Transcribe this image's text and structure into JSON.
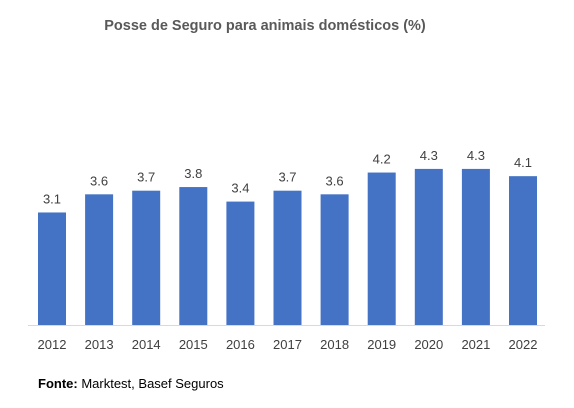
{
  "title": "Posse de Seguro para animais domésticos (%)",
  "source": {
    "label": "Fonte:",
    "text": " Marktest, Basef Seguros"
  },
  "colors": {
    "bar": "#4472C4",
    "label": "#404040",
    "axis": "#D9D9D9"
  },
  "chart_data": {
    "type": "bar",
    "title": "Posse de Seguro para animais domésticos (%)",
    "categories": [
      "2012",
      "2013",
      "2014",
      "2015",
      "2016",
      "2017",
      "2018",
      "2019",
      "2020",
      "2021",
      "2022"
    ],
    "values": [
      3.1,
      3.6,
      3.7,
      3.8,
      3.4,
      3.7,
      3.6,
      4.2,
      4.3,
      4.3,
      4.1
    ],
    "value_labels": [
      "3.1",
      "3.6",
      "3.7",
      "3.8",
      "3.4",
      "3.7",
      "3.6",
      "4.2",
      "4.3",
      "4.3",
      "4.1"
    ],
    "xlabel": "",
    "ylabel": "",
    "ylim": [
      0,
      4.5
    ],
    "grid": false,
    "legend": "none"
  }
}
